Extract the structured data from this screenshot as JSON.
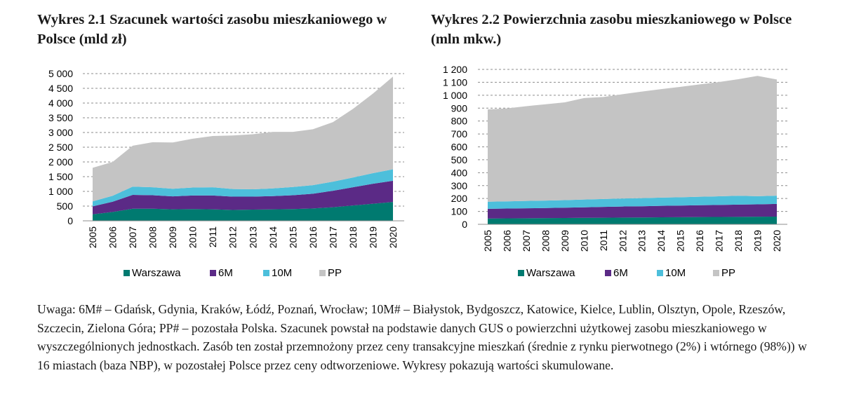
{
  "chart_data": [
    {
      "type": "area",
      "stacked": true,
      "title": "Wykres 2.1 Szacunek wartości zasobu mieszkaniowego w Polsce (mld zł)",
      "x": [
        "2005",
        "2006",
        "2007",
        "2008",
        "2009",
        "2010",
        "2011",
        "2012",
        "2013",
        "2014",
        "2015",
        "2016",
        "2017",
        "2018",
        "2019",
        "2020"
      ],
      "ylim": [
        0,
        5000
      ],
      "yticks": [
        "0",
        "500",
        "1 000",
        "1 500",
        "2 000",
        "2 500",
        "3 000",
        "3 500",
        "4 000",
        "4 500",
        "5 000"
      ],
      "grid": true,
      "legend": "bottom",
      "series": [
        {
          "name": "Warszawa",
          "color": "#007a70",
          "values": [
            220,
            300,
            410,
            410,
            390,
            400,
            390,
            370,
            380,
            390,
            400,
            420,
            460,
            520,
            580,
            640
          ]
        },
        {
          "name": "6M",
          "color": "#5b2a86",
          "values": [
            270,
            350,
            470,
            460,
            440,
            460,
            470,
            450,
            440,
            450,
            470,
            500,
            560,
            620,
            680,
            720
          ]
        },
        {
          "name": "10M",
          "color": "#4dbfdb",
          "values": [
            170,
            200,
            280,
            270,
            260,
            270,
            280,
            260,
            250,
            260,
            280,
            290,
            310,
            330,
            360,
            390
          ]
        },
        {
          "name": "PP",
          "color": "#c4c4c4",
          "values": [
            1140,
            1150,
            1390,
            1530,
            1570,
            1660,
            1740,
            1820,
            1870,
            1920,
            1870,
            1900,
            2020,
            2330,
            2700,
            3150
          ]
        }
      ]
    },
    {
      "type": "area",
      "stacked": true,
      "title": "Wykres 2.2 Powierzchnia zasobu mieszkaniowego w Polsce (mln mkw.)",
      "x": [
        "2005",
        "2006",
        "2007",
        "2008",
        "2009",
        "2010",
        "2011",
        "2012",
        "2013",
        "2014",
        "2015",
        "2016",
        "2017",
        "2018",
        "2019",
        "2020"
      ],
      "ylim": [
        0,
        1200
      ],
      "yticks": [
        "0",
        "100",
        "200",
        "300",
        "400",
        "500",
        "600",
        "700",
        "800",
        "900",
        "1 000",
        "1 100",
        "1 200"
      ],
      "grid": true,
      "legend": "bottom",
      "series": [
        {
          "name": "Warszawa",
          "color": "#007a70",
          "values": [
            45,
            46,
            47,
            48,
            49,
            50,
            51,
            52,
            53,
            54,
            55,
            56,
            57,
            58,
            59,
            60
          ]
        },
        {
          "name": "6M",
          "color": "#5b2a86",
          "values": [
            75,
            76,
            77,
            78,
            80,
            82,
            84,
            86,
            87,
            89,
            90,
            92,
            93,
            95,
            96,
            98
          ]
        },
        {
          "name": "10M",
          "color": "#4dbfdb",
          "values": [
            55,
            56,
            57,
            58,
            58,
            60,
            61,
            62,
            63,
            64,
            65,
            66,
            67,
            68,
            63,
            64
          ]
        },
        {
          "name": "PP",
          "color": "#c4c4c4",
          "values": [
            715,
            720,
            734,
            746,
            758,
            786,
            790,
            808,
            825,
            840,
            855,
            870,
            885,
            903,
            932,
            900
          ]
        }
      ]
    }
  ],
  "note": "Uwaga: 6M# – Gdańsk, Gdynia, Kraków, Łódź, Poznań, Wrocław; 10M# – Białystok, Bydgoszcz, Katowice, Kielce, Lublin, Olsztyn, Opole, Rzeszów, Szczecin, Zielona Góra; PP# – pozostała Polska. Szacunek powstał na podstawie danych GUS o powierzchni użytkowej zasobu mieszkaniowego w wyszczególnionych jednostkach. Zasób ten został przemnożony przez ceny transakcyjne mieszkań (średnie z rynku pierwotnego (2%) i wtórnego (98%)) w 16 miastach (baza NBP), w pozostałej Polsce przez ceny odtworzeniowe. Wykresy pokazują wartości skumulowane."
}
